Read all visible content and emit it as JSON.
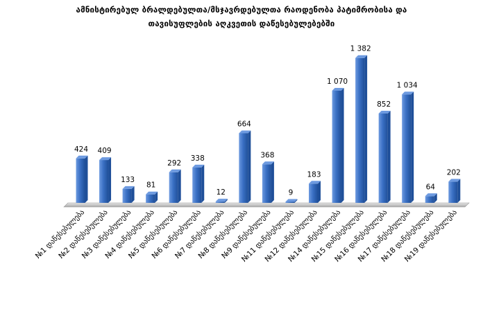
{
  "chart_data": {
    "type": "bar",
    "title_lines": [
      "ამნისტირებულ ბრალდებულთა/მსჯავრდებულთა რაოდენობა პატიმრობისა და",
      "თავისუფლების აღკვეთის დაწესებულებებში"
    ],
    "categories": [
      "№1 დაწესებულება",
      "№2 დაწესებულება",
      "№3 დაწესებულება",
      "№4 დაწესებულება",
      "№5 დაწესებულება",
      "№6 დაწესებულება",
      "№7 დაწესებულება",
      "№8 დაწესებულება",
      "№9 დაწესებულება",
      "№11 დაწესებულება",
      "№12 დაწესებულება",
      "№14 დაწესებულება",
      "№15 დაწესებულება",
      "№16 დაწესებულება",
      "№17 დაწესებულება",
      "№18 დაწესებულება",
      "№19 დაწესებულება"
    ],
    "values": [
      424,
      409,
      133,
      81,
      292,
      338,
      12,
      664,
      368,
      9,
      183,
      1070,
      1382,
      852,
      1034,
      64,
      202
    ],
    "value_labels": [
      "424",
      "409",
      "133",
      "81",
      "292",
      "338",
      "12",
      "664",
      "368",
      "9",
      "183",
      "1 070",
      "1 382",
      "852",
      "1 034",
      "64",
      "202"
    ],
    "ylim": [
      0,
      1400
    ],
    "grid": false,
    "legend": "none",
    "colors": {
      "bar_front": "#3a70c4",
      "bar_dark": "#1f4f99",
      "bar_top": "#6d9ae0",
      "floor": "#bfbfbf"
    }
  }
}
